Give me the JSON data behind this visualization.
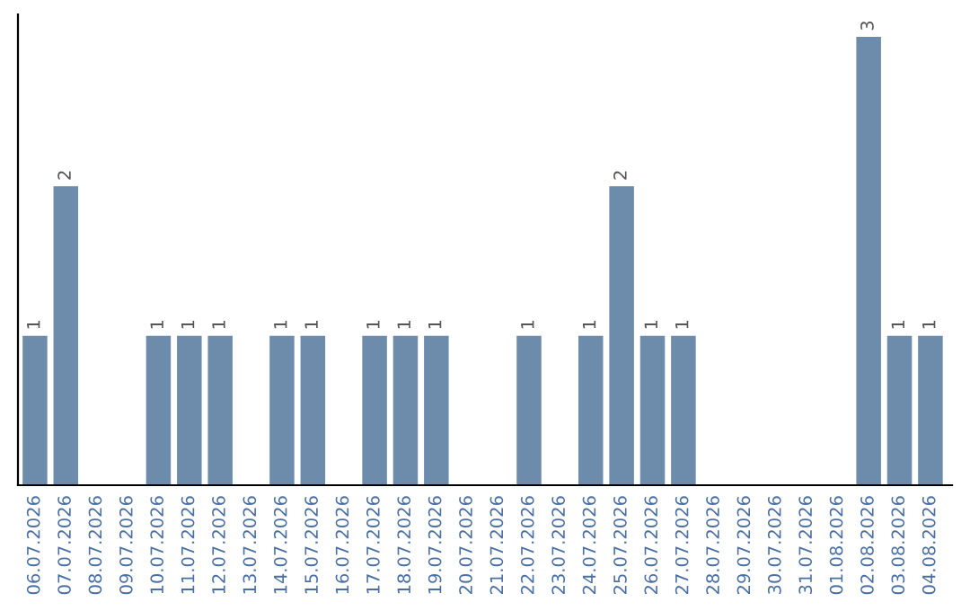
{
  "chart_data": {
    "type": "bar",
    "categories": [
      "06.07.2026",
      "07.07.2026",
      "08.07.2026",
      "09.07.2026",
      "10.07.2026",
      "11.07.2026",
      "12.07.2026",
      "13.07.2026",
      "14.07.2026",
      "15.07.2026",
      "16.07.2026",
      "17.07.2026",
      "18.07.2026",
      "19.07.2026",
      "20.07.2026",
      "21.07.2026",
      "22.07.2026",
      "23.07.2026",
      "24.07.2026",
      "25.07.2026",
      "26.07.2026",
      "27.07.2026",
      "28.07.2026",
      "29.07.2026",
      "30.07.2026",
      "31.07.2026",
      "01.08.2026",
      "02.08.2026",
      "03.08.2026",
      "04.08.2026"
    ],
    "values": [
      1,
      2,
      null,
      null,
      1,
      1,
      1,
      null,
      1,
      1,
      null,
      1,
      1,
      1,
      null,
      null,
      1,
      null,
      1,
      2,
      1,
      1,
      null,
      null,
      null,
      null,
      null,
      3,
      1,
      1
    ],
    "color": "#6d8cab",
    "data_labels": true,
    "grid": false,
    "legend": false
  }
}
